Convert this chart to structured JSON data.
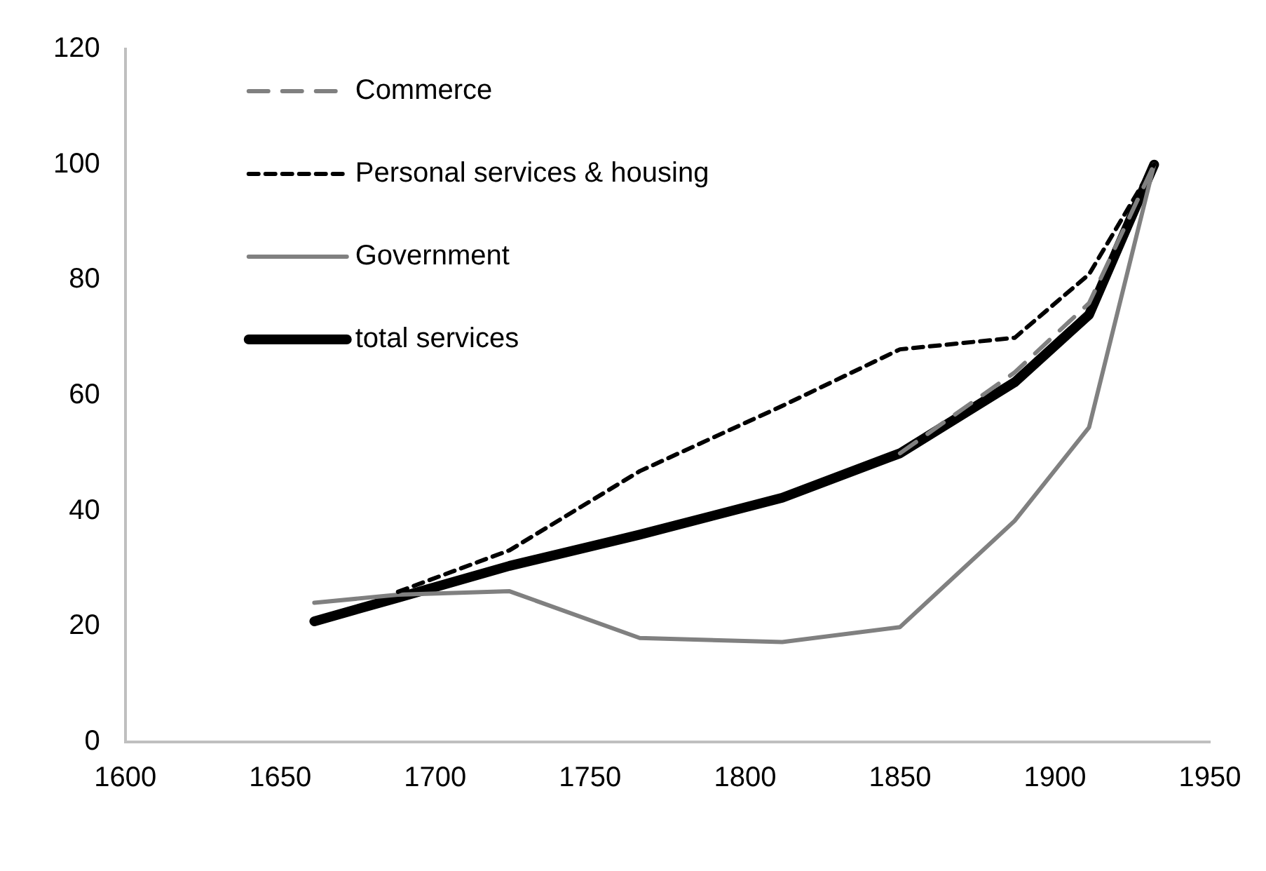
{
  "chart_data": {
    "type": "line",
    "x": [
      1661,
      1688,
      1724,
      1766,
      1812,
      1850,
      1887,
      1911,
      1932
    ],
    "series": [
      {
        "name": "Commerce",
        "color": "#808080",
        "line_style": "dashed",
        "values": [
          null,
          null,
          null,
          null,
          null,
          50,
          64,
          76,
          100
        ]
      },
      {
        "name": "Personal services & housing",
        "color": "#000000",
        "line_style": "dotted",
        "values": [
          null,
          26,
          33.2,
          46.9,
          58.2,
          68,
          70,
          81,
          100
        ]
      },
      {
        "name": "Government",
        "color": "#808080",
        "line_style": "solid",
        "values": [
          24.1,
          25.5,
          26.1,
          18,
          17.3,
          19.9,
          38.3,
          54.5,
          100
        ]
      },
      {
        "name": "total services",
        "color": "#000000",
        "line_style": "solid",
        "values": [
          20.9,
          25,
          30.5,
          35.9,
          42.3,
          50,
          62.3,
          74,
          100
        ]
      }
    ],
    "xlim": [
      1600,
      1950
    ],
    "xticks": [
      1600,
      1650,
      1700,
      1750,
      1800,
      1850,
      1900,
      1950
    ],
    "ylim": [
      0,
      120
    ],
    "yticks": [
      0,
      20,
      40,
      60,
      80,
      100,
      120
    ],
    "grid": false,
    "legend": "top left",
    "marker": "none"
  }
}
